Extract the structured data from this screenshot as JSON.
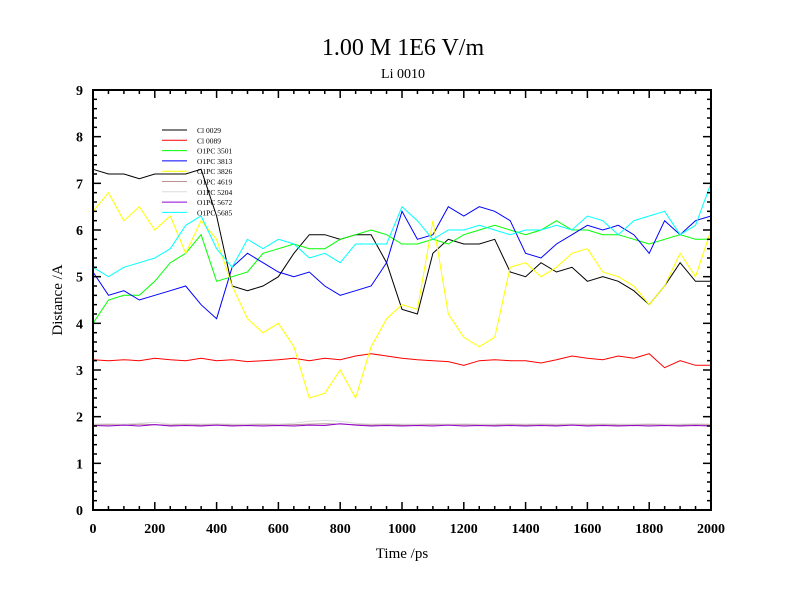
{
  "chart_data": {
    "type": "line",
    "title": "1.00 M 1E6 V/m",
    "subtitle": "Li 0010",
    "xlabel": "Time /ps",
    "ylabel": "Distance /A",
    "xlim": [
      0,
      2000
    ],
    "ylim": [
      0,
      9
    ],
    "xticks": [
      0,
      200,
      400,
      600,
      800,
      1000,
      1200,
      1400,
      1600,
      1800,
      2000
    ],
    "yticks": [
      0,
      1,
      2,
      3,
      4,
      5,
      6,
      7,
      8,
      9
    ],
    "grid": false,
    "legend_position": "top-left",
    "x": [
      0,
      50,
      100,
      150,
      200,
      250,
      300,
      350,
      400,
      450,
      500,
      550,
      600,
      650,
      700,
      750,
      800,
      850,
      900,
      950,
      1000,
      1050,
      1100,
      1150,
      1200,
      1250,
      1300,
      1350,
      1400,
      1450,
      1500,
      1550,
      1600,
      1650,
      1700,
      1750,
      1800,
      1850,
      1900,
      1950,
      2000
    ],
    "series": [
      {
        "name": "Cl 0029",
        "color": "#000000",
        "values": [
          7.3,
          7.2,
          7.2,
          7.1,
          7.2,
          7.2,
          7.2,
          7.3,
          6.3,
          4.8,
          4.7,
          4.8,
          5.0,
          5.5,
          5.9,
          5.9,
          5.8,
          5.9,
          5.9,
          5.3,
          4.3,
          4.2,
          5.5,
          5.8,
          5.7,
          5.7,
          5.8,
          5.1,
          5.0,
          5.3,
          5.1,
          5.2,
          4.9,
          5.0,
          4.9,
          4.7,
          4.4,
          4.8,
          5.3,
          4.9,
          4.9
        ]
      },
      {
        "name": "Cl 0089",
        "color": "#ff0000",
        "values": [
          3.22,
          3.2,
          3.22,
          3.2,
          3.25,
          3.22,
          3.2,
          3.25,
          3.2,
          3.22,
          3.18,
          3.2,
          3.22,
          3.25,
          3.2,
          3.25,
          3.22,
          3.3,
          3.35,
          3.3,
          3.25,
          3.22,
          3.2,
          3.18,
          3.1,
          3.2,
          3.22,
          3.2,
          3.2,
          3.15,
          3.22,
          3.3,
          3.25,
          3.22,
          3.3,
          3.25,
          3.35,
          3.05,
          3.2,
          3.1,
          3.1
        ]
      },
      {
        "name": "O1PC 3501",
        "color": "#00ff00",
        "values": [
          4.0,
          4.5,
          4.6,
          4.6,
          4.9,
          5.3,
          5.5,
          5.9,
          4.9,
          5.0,
          5.1,
          5.5,
          5.6,
          5.7,
          5.6,
          5.6,
          5.8,
          5.9,
          6.0,
          5.9,
          5.7,
          5.7,
          5.8,
          5.7,
          5.9,
          6.0,
          6.1,
          6.0,
          5.9,
          6.0,
          6.2,
          6.0,
          6.0,
          5.9,
          5.9,
          5.8,
          5.7,
          5.8,
          5.9,
          5.8,
          5.8
        ]
      },
      {
        "name": "O1PC 3813",
        "color": "#0000ff",
        "values": [
          5.1,
          4.6,
          4.7,
          4.5,
          4.6,
          4.7,
          4.8,
          4.4,
          4.1,
          5.2,
          5.5,
          5.3,
          5.1,
          5.0,
          5.1,
          4.8,
          4.6,
          4.7,
          4.8,
          5.3,
          6.4,
          5.8,
          5.9,
          6.5,
          6.3,
          6.5,
          6.4,
          6.2,
          5.5,
          5.4,
          5.7,
          5.9,
          6.1,
          6.0,
          6.1,
          5.9,
          5.5,
          6.2,
          5.9,
          6.2,
          6.3
        ]
      },
      {
        "name": "O1PC 3826",
        "color": "#ffff00",
        "values": [
          6.4,
          6.8,
          6.2,
          6.5,
          6.0,
          6.3,
          5.5,
          6.2,
          5.8,
          4.8,
          4.1,
          3.8,
          4.0,
          3.5,
          2.4,
          2.5,
          3.0,
          2.4,
          3.5,
          4.1,
          4.4,
          4.3,
          6.2,
          4.2,
          3.7,
          3.5,
          3.7,
          5.2,
          5.3,
          5.0,
          5.2,
          5.5,
          5.6,
          5.1,
          5.0,
          4.8,
          4.4,
          4.8,
          5.5,
          5.0,
          6.0
        ]
      },
      {
        "name": "O1PC 4619",
        "color": "#bc8f8f",
        "values": [
          1.82,
          1.83,
          1.82,
          1.84,
          1.83,
          1.82,
          1.83,
          1.82,
          1.83,
          1.82,
          1.82,
          1.83,
          1.82,
          1.83,
          1.84,
          1.85,
          1.84,
          1.83,
          1.82,
          1.83,
          1.82,
          1.82,
          1.83,
          1.82,
          1.83,
          1.82,
          1.82,
          1.83,
          1.82,
          1.83,
          1.82,
          1.83,
          1.82,
          1.83,
          1.82,
          1.82,
          1.83,
          1.82,
          1.82,
          1.83,
          1.82
        ]
      },
      {
        "name": "O1PC 5204",
        "color": "#dcdcdc",
        "values": [
          1.84,
          1.85,
          1.84,
          1.86,
          1.88,
          1.84,
          1.85,
          1.84,
          1.85,
          1.84,
          1.84,
          1.85,
          1.84,
          1.86,
          1.9,
          1.92,
          1.9,
          1.86,
          1.84,
          1.85,
          1.84,
          1.84,
          1.85,
          1.84,
          1.85,
          1.84,
          1.84,
          1.85,
          1.84,
          1.85,
          1.84,
          1.85,
          1.84,
          1.85,
          1.84,
          1.84,
          1.85,
          1.84,
          1.84,
          1.85,
          1.84
        ]
      },
      {
        "name": "O1PC 5672",
        "color": "#9400d3",
        "values": [
          1.81,
          1.8,
          1.82,
          1.8,
          1.83,
          1.8,
          1.81,
          1.8,
          1.82,
          1.8,
          1.81,
          1.8,
          1.81,
          1.8,
          1.82,
          1.81,
          1.85,
          1.82,
          1.8,
          1.81,
          1.8,
          1.81,
          1.8,
          1.82,
          1.8,
          1.81,
          1.8,
          1.81,
          1.8,
          1.81,
          1.8,
          1.82,
          1.8,
          1.81,
          1.8,
          1.81,
          1.8,
          1.81,
          1.8,
          1.81,
          1.8
        ]
      },
      {
        "name": "O1PC 5685",
        "color": "#00ffff",
        "values": [
          5.2,
          5.0,
          5.2,
          5.3,
          5.4,
          5.6,
          6.1,
          6.3,
          5.6,
          5.2,
          5.8,
          5.6,
          5.8,
          5.7,
          5.4,
          5.5,
          5.3,
          5.7,
          5.7,
          5.7,
          6.5,
          6.2,
          5.8,
          6.0,
          6.0,
          6.1,
          6.0,
          5.9,
          6.0,
          6.0,
          6.1,
          6.0,
          6.3,
          6.2,
          5.9,
          6.2,
          6.3,
          6.4,
          5.9,
          6.1,
          7.0
        ]
      }
    ]
  }
}
